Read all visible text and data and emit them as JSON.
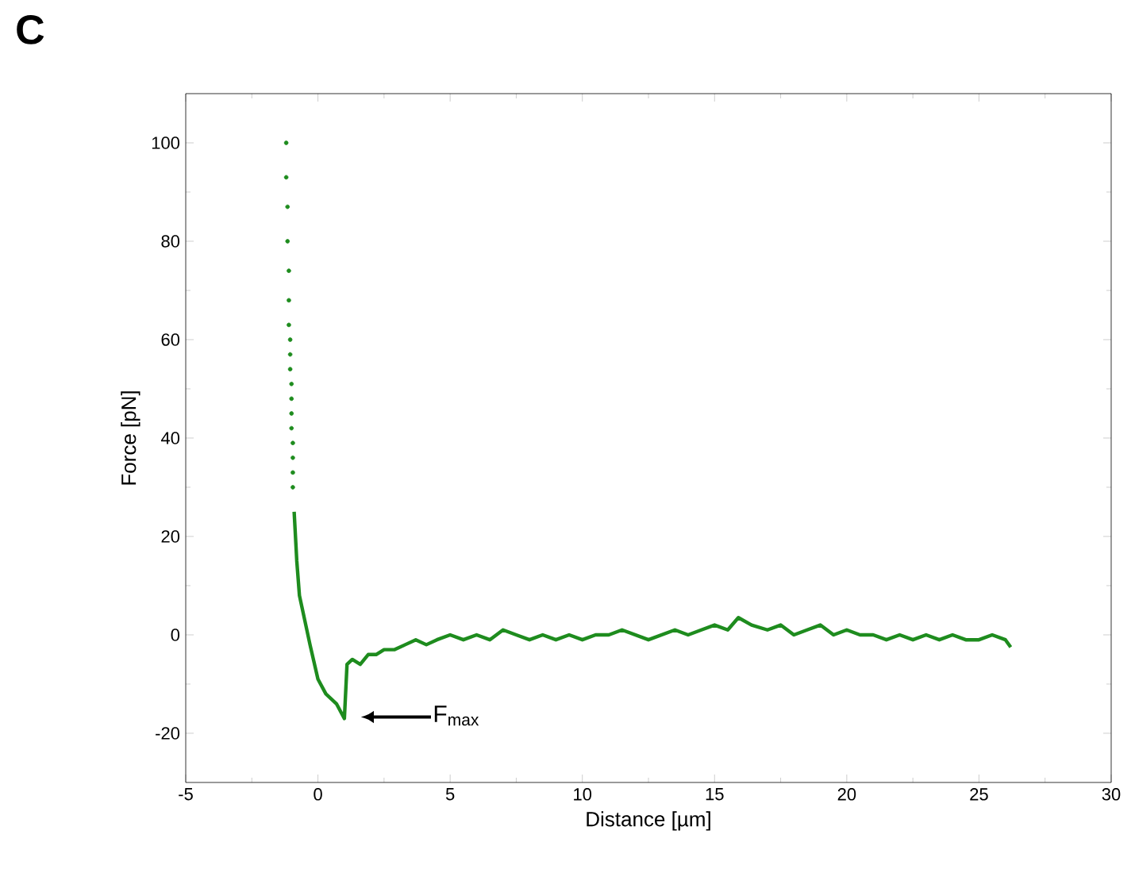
{
  "chart_data": {
    "type": "line",
    "title": "C",
    "xlabel": "Distance [µm]",
    "ylabel": "Force [pN]",
    "annotations": [
      "F$_{max}$"
    ],
    "xlim": [
      -5,
      30
    ],
    "xticks": [
      -5,
      0,
      5,
      10,
      15,
      20,
      25,
      30
    ],
    "ylim": [
      -30,
      110
    ],
    "yticks": [
      -20,
      0,
      20,
      40,
      60,
      80,
      100
    ],
    "grid": false,
    "series": [
      {
        "type": "scatter",
        "marker": "circle",
        "color": "#1e8c1e",
        "x": [
          -1.2,
          -1.2,
          -1.15,
          -1.15,
          -1.1,
          -1.1,
          -1.1,
          -1.05,
          -1.05,
          -1.05,
          -1.0,
          -1.0,
          -1.0,
          -1.0,
          -0.95,
          -0.95,
          -0.95,
          -0.95
        ],
        "values": [
          100,
          93,
          87,
          80,
          74,
          68,
          63,
          60,
          57,
          54,
          51,
          48,
          45,
          42,
          39,
          36,
          33,
          30
        ]
      },
      {
        "marker": "none",
        "line_style": "solid",
        "color": "#1e8c1e",
        "x": [
          -0.9,
          -0.8,
          -0.7,
          -0.5,
          -0.3,
          0,
          0.3,
          0.5,
          0.7,
          0.9,
          1.0,
          1.1,
          1.3,
          1.6,
          1.9,
          2.2,
          2.5,
          2.9,
          3.3,
          3.7,
          4.1,
          4.5,
          5,
          5.5,
          6,
          6.5,
          7,
          7.5,
          8,
          8.5,
          9,
          9.5,
          10,
          10.5,
          11,
          11.5,
          12,
          12.5,
          13,
          13.5,
          14,
          14.5,
          15,
          15.5,
          15.9,
          16.4,
          17,
          17.5,
          18,
          18.5,
          19,
          19.5,
          20,
          20.5,
          21,
          21.5,
          22,
          22.5,
          23,
          23.5,
          24,
          24.5,
          25,
          25.5,
          26,
          26.2
        ],
        "values": [
          25,
          15,
          8,
          3,
          -2,
          -9,
          -12,
          -13,
          -14,
          -16,
          -17,
          -6,
          -5,
          -6,
          -4,
          -4,
          -3,
          -3,
          -2,
          -1,
          -2,
          -1,
          0,
          -1,
          0,
          -1,
          1,
          0,
          -1,
          0,
          -1,
          0,
          -1,
          0,
          0,
          1,
          0,
          -1,
          0,
          1,
          0,
          1,
          2,
          1,
          3.5,
          2,
          1,
          2,
          0,
          1,
          2,
          0,
          1,
          0,
          0,
          -1,
          0,
          -1,
          0,
          -1,
          0,
          -1,
          -1,
          0,
          -1,
          -2.5
        ]
      }
    ]
  }
}
